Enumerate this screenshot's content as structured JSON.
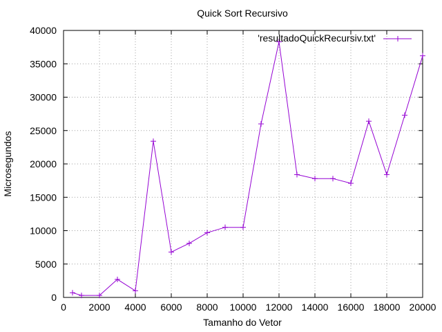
{
  "chart_data": {
    "type": "line",
    "title": "Quick Sort Recursivo",
    "xlabel": "Tamanho do Vetor",
    "ylabel": "Microsegundos",
    "xlim": [
      0,
      20000
    ],
    "ylim": [
      0,
      40000
    ],
    "x_ticks": [
      "0",
      "2000",
      "4000",
      "6000",
      "8000",
      "10000",
      "12000",
      "14000",
      "16000",
      "18000",
      "20000"
    ],
    "y_ticks": [
      "0",
      "5000",
      "10000",
      "15000",
      "20000",
      "25000",
      "30000",
      "35000",
      "40000"
    ],
    "grid": true,
    "legend_position": "top-right",
    "series": [
      {
        "name": "'resultadoQuickRecursiv.txt'",
        "color": "#9400d3",
        "marker": "plus",
        "x": [
          500,
          1000,
          2000,
          3000,
          4000,
          5000,
          6000,
          7000,
          8000,
          9000,
          10000,
          11000,
          12000,
          13000,
          14000,
          15000,
          16000,
          17000,
          18000,
          19000,
          20000
        ],
        "values": [
          700,
          300,
          300,
          2700,
          1000,
          23400,
          6800,
          8100,
          9700,
          10500,
          10500,
          26000,
          38300,
          18400,
          17800,
          17800,
          17100,
          26400,
          18400,
          27300,
          36200
        ]
      }
    ]
  }
}
